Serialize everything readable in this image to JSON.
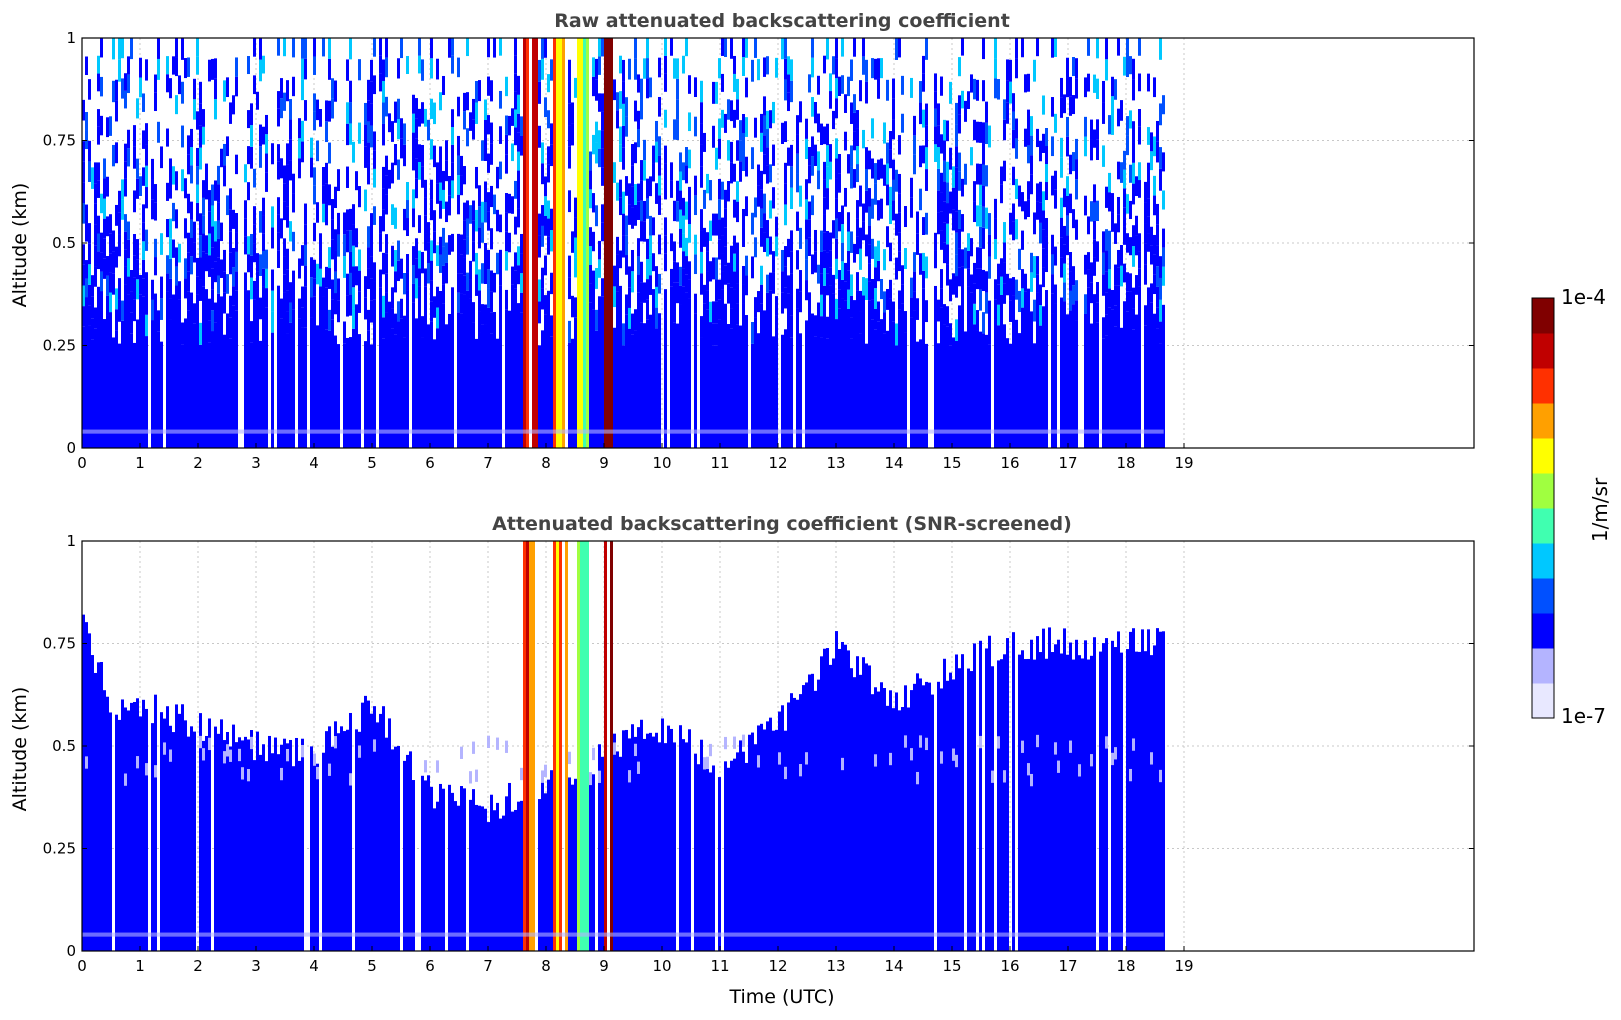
{
  "colormap": [
    "#e8e8ff",
    "#b4b4ff",
    "#0000ff",
    "#0050ff",
    "#00c8ff",
    "#40ffb0",
    "#a0ff40",
    "#ffff00",
    "#ffa000",
    "#ff3000",
    "#c00000",
    "#800000"
  ],
  "chart_data": [
    {
      "type": "heatmap",
      "title": "Raw attenuated backscattering coefficient",
      "xlabel": "",
      "ylabel": "Altitude (km)",
      "xlim": [
        0,
        24
      ],
      "ylim": [
        0,
        1
      ],
      "x_ticks": [
        "0",
        "1",
        "2",
        "3",
        "4",
        "5",
        "6",
        "7",
        "8",
        "9",
        "10",
        "11",
        "12",
        "13",
        "14",
        "15",
        "16",
        "17",
        "18",
        "19"
      ],
      "y_ticks": [
        "0",
        "0.25",
        "0.5",
        "0.75",
        "1"
      ],
      "grid": true,
      "data_end_hour": 18.65,
      "clouds": [
        {
          "x0": 7.6,
          "x1": 7.85,
          "level": 9
        },
        {
          "x0": 8.1,
          "x1": 8.35,
          "level": 8
        },
        {
          "x0": 8.5,
          "x1": 8.7,
          "level": 6
        },
        {
          "x0": 8.95,
          "x1": 9.15,
          "level": 10
        }
      ]
    },
    {
      "type": "heatmap",
      "title": "Attenuated backscattering coefficient (SNR-screened)",
      "xlabel": "Time (UTC)",
      "ylabel": "Altitude (km)",
      "xlim": [
        0,
        24
      ],
      "ylim": [
        0,
        1
      ],
      "x_ticks": [
        "0",
        "1",
        "2",
        "3",
        "4",
        "5",
        "6",
        "7",
        "8",
        "9",
        "10",
        "11",
        "12",
        "13",
        "14",
        "15",
        "16",
        "17",
        "18",
        "19"
      ],
      "y_ticks": [
        "0",
        "0.25",
        "0.5",
        "0.75",
        "1"
      ],
      "grid": true,
      "data_end_hour": 18.65,
      "clouds": [
        {
          "x0": 7.6,
          "x1": 7.85,
          "level": 9
        },
        {
          "x0": 8.1,
          "x1": 8.35,
          "level": 8
        },
        {
          "x0": 8.5,
          "x1": 8.7,
          "level": 6
        },
        {
          "x0": 8.95,
          "x1": 9.15,
          "level": 10
        }
      ],
      "top_profile": [
        {
          "t": 0.0,
          "h": 0.8
        },
        {
          "t": 0.5,
          "h": 0.6
        },
        {
          "t": 1.0,
          "h": 0.6
        },
        {
          "t": 2.0,
          "h": 0.55
        },
        {
          "t": 3.0,
          "h": 0.5
        },
        {
          "t": 4.0,
          "h": 0.48
        },
        {
          "t": 5.0,
          "h": 0.6
        },
        {
          "t": 6.0,
          "h": 0.38
        },
        {
          "t": 7.0,
          "h": 0.35
        },
        {
          "t": 10.0,
          "h": 0.55
        },
        {
          "t": 11.0,
          "h": 0.45
        },
        {
          "t": 12.0,
          "h": 0.55
        },
        {
          "t": 13.0,
          "h": 0.75
        },
        {
          "t": 14.0,
          "h": 0.6
        },
        {
          "t": 15.0,
          "h": 0.7
        },
        {
          "t": 16.0,
          "h": 0.75
        },
        {
          "t": 17.0,
          "h": 0.75
        },
        {
          "t": 18.65,
          "h": 0.75
        }
      ]
    }
  ],
  "colorbar": {
    "max_label": "1e-4",
    "min_label": "1e-7",
    "units_label": "1/m/sr"
  }
}
